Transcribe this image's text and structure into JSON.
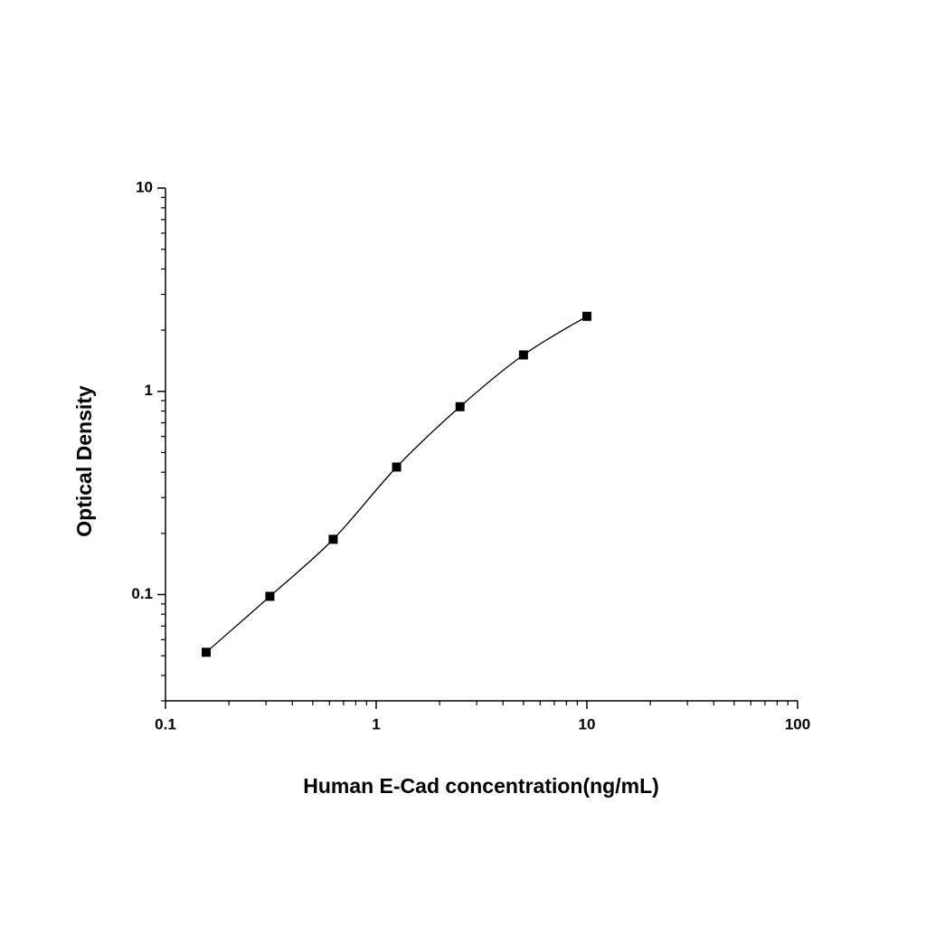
{
  "chart_data": {
    "type": "scatter",
    "x_label": "Human E-Cad concentration(ng/mL)",
    "y_label": "Optical Density",
    "x_log": true,
    "y_log": true,
    "xlim": [
      0.1,
      100
    ],
    "ylim": [
      0.03,
      10
    ],
    "xticks": [
      0.1,
      1,
      10,
      100
    ],
    "yticks": [
      0.1,
      1,
      10
    ],
    "series": [
      {
        "color": "#000000",
        "x": [
          0.156,
          0.313,
          0.625,
          1.25,
          2.5,
          5,
          10
        ],
        "values": [
          0.052,
          0.098,
          0.187,
          0.424,
          0.84,
          1.51,
          2.34
        ]
      }
    ]
  }
}
